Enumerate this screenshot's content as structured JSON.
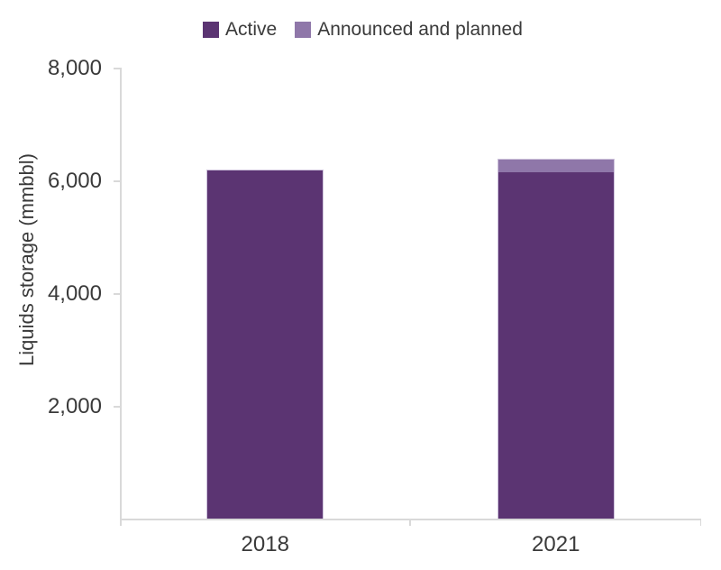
{
  "chart_data": {
    "type": "bar",
    "stacked": true,
    "title": "",
    "categories": [
      "2018",
      "2021"
    ],
    "series": [
      {
        "name": "Active",
        "color": "#5B3472",
        "values": [
          6190,
          6160
        ]
      },
      {
        "name": "Announced and planned",
        "color": "#8F77A9",
        "values": [
          0,
          230
        ]
      }
    ],
    "xlabel": "",
    "ylabel": "Liquids storage (mmbbl)",
    "ylim": [
      0,
      8000
    ],
    "yticks": [
      {
        "value": 2000,
        "label": "2,000"
      },
      {
        "value": 4000,
        "label": "4,000"
      },
      {
        "value": 6000,
        "label": "6,000"
      },
      {
        "value": 8000,
        "label": "8,000"
      }
    ],
    "legend_position": "top",
    "grid": false
  },
  "colors": {
    "axis": "#D9D9D9",
    "text": "#3A3A3A",
    "background": "#FFFFFF",
    "bar_border": "#CEC3DC"
  }
}
